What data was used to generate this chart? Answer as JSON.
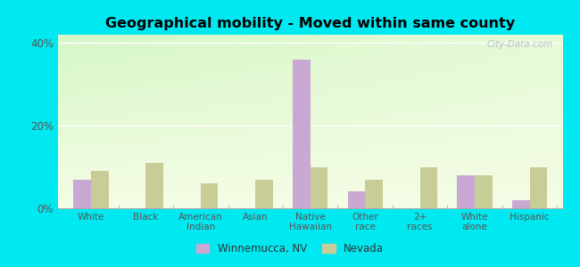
{
  "title": "Geographical mobility - Moved within same county",
  "categories": [
    "White",
    "Black",
    "American\nIndian",
    "Asian",
    "Native\nHawaiian",
    "Other\nrace",
    "2+\nraces",
    "White\nalone",
    "Hispanic"
  ],
  "winnemucca": [
    7,
    0,
    0,
    0,
    36,
    4,
    0,
    8,
    2
  ],
  "nevada": [
    9,
    11,
    6,
    7,
    10,
    7,
    10,
    8,
    10
  ],
  "winnemucca_color": "#c9a8d4",
  "nevada_color": "#c8cc96",
  "background_color_outer": "#00e8f0",
  "ylim": [
    0,
    42
  ],
  "yticks": [
    0,
    20,
    40
  ],
  "ytick_labels": [
    "0%",
    "20%",
    "40%"
  ],
  "bar_width": 0.32,
  "legend_labels": [
    "Winnemucca, NV",
    "Nevada"
  ],
  "watermark": "City-Data.com"
}
